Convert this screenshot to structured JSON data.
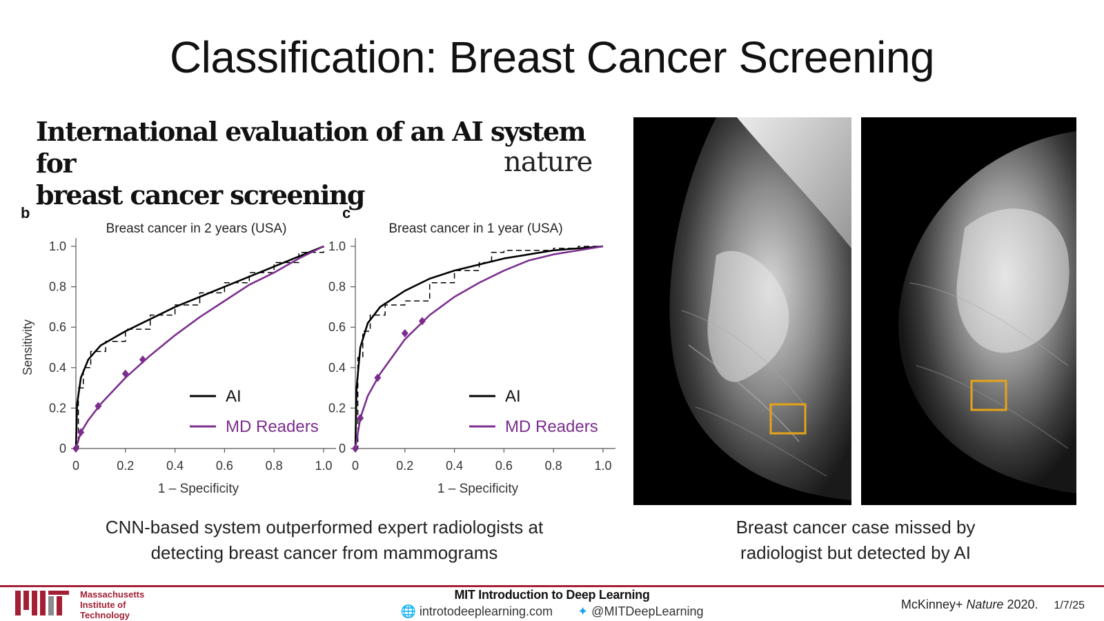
{
  "slide": {
    "title": "Classification: Breast Cancer Screening",
    "paper_title_line1": "International evaluation of an AI system for",
    "paper_title_line2": "breast cancer screening",
    "journal": "nature",
    "left_caption_line1": "CNN-based system outperformed expert radiologists at",
    "left_caption_line2": "detecting breast cancer from mammograms",
    "right_caption_line1": "Breast cancer case missed by",
    "right_caption_line2": "radiologist but detected by AI"
  },
  "footer": {
    "institute_line1": "Massachusetts",
    "institute_line2": "Institute of",
    "institute_line3": "Technology",
    "course": "MIT Introduction to Deep Learning",
    "website": "introtodeeplearning.com",
    "twitter": "@MITDeepLearning",
    "citation_author": "McKinney+",
    "citation_journal": "Nature",
    "citation_year": "2020.",
    "date": "1/7/25"
  },
  "colors": {
    "ai": "#000000",
    "md_readers": "#7b2d8e",
    "mit_red": "#a31f34",
    "highlight_box": "#e8a317"
  },
  "chart_data": [
    {
      "type": "line",
      "panel": "b",
      "title": "Breast cancer in 2 years (USA)",
      "xlabel": "1 – Specificity",
      "ylabel": "Sensitivity",
      "xlim": [
        0,
        1
      ],
      "ylim": [
        0,
        1
      ],
      "x_ticks": [
        "0",
        "0.2",
        "0.4",
        "0.6",
        "0.8",
        "1.0"
      ],
      "y_ticks": [
        "0",
        "0.2",
        "0.4",
        "0.6",
        "0.8",
        "1.0"
      ],
      "legend_position": "bottom-right",
      "series": [
        {
          "name": "AI",
          "style": "solid",
          "x": [
            0,
            0.005,
            0.02,
            0.05,
            0.1,
            0.2,
            0.3,
            0.4,
            0.5,
            0.6,
            0.7,
            0.8,
            0.9,
            1.0
          ],
          "y": [
            0,
            0.22,
            0.35,
            0.44,
            0.51,
            0.58,
            0.64,
            0.7,
            0.75,
            0.8,
            0.85,
            0.9,
            0.95,
            1.0
          ]
        },
        {
          "name": "",
          "style": "dashed",
          "x": [
            0,
            0.01,
            0.03,
            0.06,
            0.12,
            0.2,
            0.3,
            0.4,
            0.5,
            0.6,
            0.7,
            0.8,
            0.9,
            1.0
          ],
          "y": [
            0,
            0.3,
            0.4,
            0.48,
            0.53,
            0.59,
            0.66,
            0.71,
            0.77,
            0.82,
            0.87,
            0.92,
            0.97,
            1.0
          ]
        },
        {
          "name": "MD Readers",
          "style": "solid",
          "x": [
            0,
            0.02,
            0.05,
            0.1,
            0.2,
            0.3,
            0.4,
            0.5,
            0.6,
            0.7,
            0.8,
            0.9,
            1.0
          ],
          "y": [
            0,
            0.08,
            0.14,
            0.22,
            0.35,
            0.46,
            0.56,
            0.65,
            0.73,
            0.81,
            0.87,
            0.94,
            1.0
          ]
        },
        {
          "name": "",
          "style": "markers",
          "x": [
            0,
            0.02,
            0.09,
            0.2,
            0.27
          ],
          "y": [
            0,
            0.08,
            0.21,
            0.37,
            0.44
          ]
        }
      ]
    },
    {
      "type": "line",
      "panel": "c",
      "title": "Breast cancer in 1 year (USA)",
      "xlabel": "1 – Specificity",
      "ylabel": "",
      "xlim": [
        0,
        1
      ],
      "ylim": [
        0,
        1
      ],
      "x_ticks": [
        "0",
        "0.2",
        "0.4",
        "0.6",
        "0.8",
        "1.0"
      ],
      "y_ticks": [
        "0",
        "0.2",
        "0.4",
        "0.6",
        "0.8",
        "1.0"
      ],
      "legend_position": "bottom-right",
      "series": [
        {
          "name": "AI",
          "style": "solid",
          "x": [
            0,
            0.005,
            0.02,
            0.05,
            0.1,
            0.2,
            0.3,
            0.4,
            0.5,
            0.6,
            0.7,
            0.8,
            0.9,
            1.0
          ],
          "y": [
            0,
            0.3,
            0.5,
            0.62,
            0.7,
            0.78,
            0.84,
            0.88,
            0.91,
            0.94,
            0.96,
            0.98,
            0.99,
            1.0
          ]
        },
        {
          "name": "",
          "style": "dashed",
          "x": [
            0,
            0.01,
            0.03,
            0.06,
            0.12,
            0.2,
            0.3,
            0.4,
            0.5,
            0.55,
            0.6,
            0.7,
            0.8,
            0.9,
            1.0
          ],
          "y": [
            0,
            0.45,
            0.58,
            0.66,
            0.71,
            0.73,
            0.82,
            0.88,
            0.92,
            0.97,
            0.98,
            0.98,
            0.99,
            1.0,
            1.0
          ]
        },
        {
          "name": "MD Readers",
          "style": "solid",
          "x": [
            0,
            0.02,
            0.05,
            0.1,
            0.2,
            0.3,
            0.4,
            0.5,
            0.6,
            0.7,
            0.8,
            0.9,
            1.0
          ],
          "y": [
            0,
            0.15,
            0.26,
            0.37,
            0.54,
            0.66,
            0.75,
            0.82,
            0.88,
            0.93,
            0.96,
            0.98,
            1.0
          ]
        },
        {
          "name": "",
          "style": "markers",
          "x": [
            0,
            0.02,
            0.09,
            0.2,
            0.27
          ],
          "y": [
            0,
            0.15,
            0.35,
            0.57,
            0.63
          ]
        }
      ]
    }
  ]
}
